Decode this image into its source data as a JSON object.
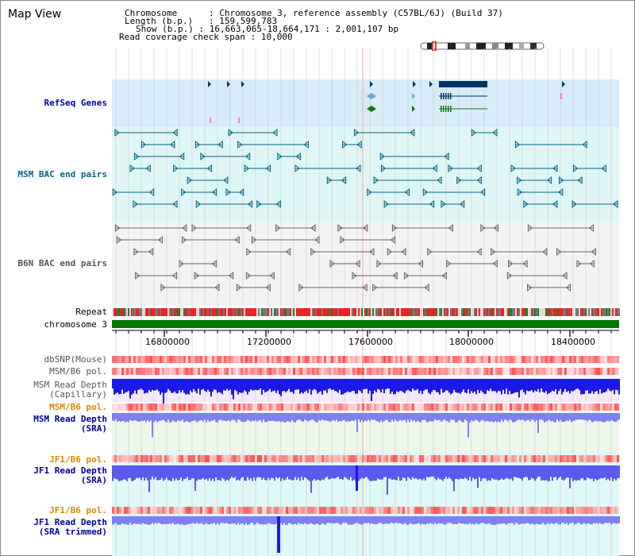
{
  "title": "Map View",
  "info": {
    "chromosome_label": "Chromosome",
    "chromosome_value": "Chromosome 3, reference assembly (C57BL/6J) (Build 37)",
    "length_label": "Length (b.p.)",
    "length_value": "159,599,783",
    "show_label": "Show (b.p.)",
    "show_value": "16,663,065-18,664,171 : 2,001,107 bp",
    "coverage_label": "Read coverage check span",
    "coverage_value": "10,000"
  },
  "tracks": {
    "refseq": "RefSeq Genes",
    "msm_bac": "MSM BAC end pairs",
    "b6n_bac": "B6N BAC end pairs",
    "repeat": "Repeat",
    "chromosome": "chromosome 3",
    "dbsnp": "dbSNP(Mouse)",
    "msm_pol": "MSM/B6 pol.",
    "msm_depth_cap_1": "MSM Read Depth",
    "msm_depth_cap_2": "(Capillary)",
    "msm_pol_2": "MSM/B6 pol.",
    "msm_depth_sra_1": "MSM Read Depth",
    "msm_depth_sra_2": "(SRA)",
    "jf1_pol": "JF1/B6 pol.",
    "jf1_depth_sra_1": "JF1 Read Depth",
    "jf1_depth_sra_2": "(SRA)",
    "jf1_pol_2": "JF1/B6 pol.",
    "jf1_depth_trim_1": "JF1 Read Depth",
    "jf1_depth_trim_2": "(SRA trimmed)"
  },
  "axis": {
    "ticks": [
      "16800000",
      "17200000",
      "17600000",
      "18000000",
      "18400000"
    ]
  },
  "colors": {
    "refseq_bg": "#d6ecf8",
    "msm_bac_bg": "#dff6f6",
    "b6n_bac_bg": "#f3f3f3",
    "msm_depth_bg": "#f5e8f8",
    "sra_bg": "#ebf8ea",
    "jf1_bg": "#dff8f8",
    "refseq_label": "#0000aa",
    "msm_label": "#006688",
    "b6n_label": "#555555",
    "orange_label": "#dd8800",
    "blue_label": "#000099",
    "chromosome": "#007700",
    "depth_dark": "#1a1ae6",
    "depth_light": "#7f7ff0",
    "pol_red": "#f24040",
    "pol_pink": "#f8c0c0"
  }
}
